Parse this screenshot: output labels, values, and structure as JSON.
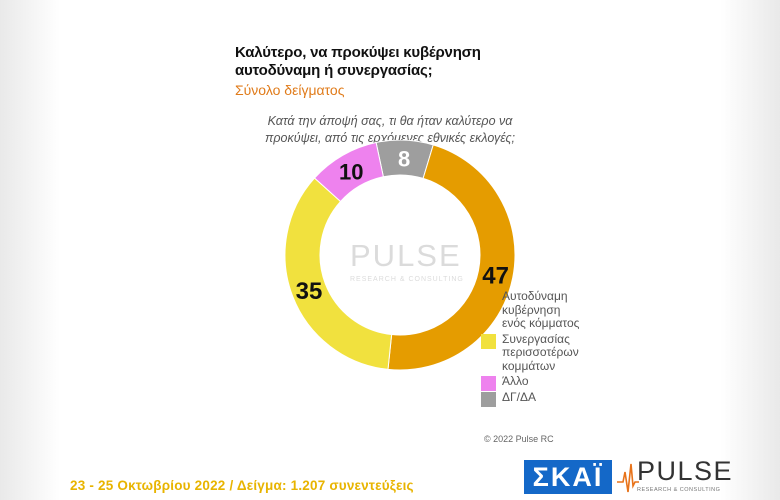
{
  "chart_data": {
    "type": "pie",
    "title": "Καλύτερο, να προκύψει κυβέρνηση αυτοδύναμη ή συνεργασίας;",
    "subtitle": "Σύνολο δείγματος",
    "question": "Κατά την άποψή σας, τι θα ήταν καλύτερο να προκύψει, από τις ερχόμενες εθνικές εκλογές;",
    "categories": [
      "Αυτοδύναμη κυβέρνηση ενός κόμματος",
      "Συνεργασίας περισσοτέρων κομμάτων",
      "Άλλο",
      "ΔΓ/ΔΑ"
    ],
    "values": [
      47,
      35,
      10,
      8
    ],
    "colors": [
      "#e59c00",
      "#f1e13e",
      "#ee82ee",
      "#9e9e9e"
    ],
    "legend_position": "right"
  },
  "legend": [
    {
      "label": "Αυτοδύναμη κυβέρνηση ενός κόμματος",
      "color": "#e59c00"
    },
    {
      "label": "Συνεργασίας περισσοτέρων κομμάτων",
      "color": "#f1e13e"
    },
    {
      "label": "Άλλο",
      "color": "#ee82ee"
    },
    {
      "label": "ΔΓ/ΔΑ",
      "color": "#9e9e9e"
    }
  ],
  "watermark": {
    "word": "PULSE",
    "sub": "RESEARCH & CONSULTING"
  },
  "copyright": "© 2022 Pulse RC",
  "footer": "23 - 25 Οκτωβρίου 2022 / Δείγμα: 1.207 συνεντεύξεις",
  "logos": {
    "skai": "ΣΚΑΪ",
    "pulse": "PULSE",
    "pulse_sub": "RESEARCH & CONSULTING"
  }
}
